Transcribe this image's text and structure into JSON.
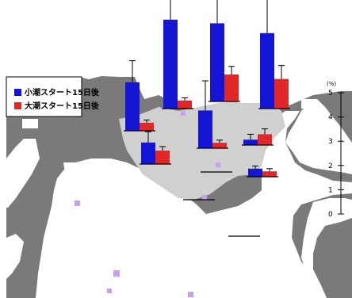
{
  "colors": {
    "land": "#7a7a7a",
    "sea": "#ffffff",
    "study_area": "#d0d0d0",
    "series_blue": "#1515d6",
    "series_red": "#e02828",
    "marker": "#c8a0f0"
  },
  "legend": {
    "items": [
      {
        "label": "小潮スタート15日後",
        "color": "#1515d6"
      },
      {
        "label": "大潮スタート15日後",
        "color": "#e02828"
      }
    ]
  },
  "axis": {
    "unit_label": "(%)",
    "ticks": [
      "5",
      "4",
      "3",
      "2",
      "1",
      "0"
    ]
  },
  "chart_data": {
    "type": "bar",
    "title": "",
    "ylabel": "(%)",
    "ylim": [
      0,
      5
    ],
    "series": [
      {
        "name": "小潮スタート15日後",
        "values": [
          1.8,
          3.3,
          2.9,
          1.4,
          0.2,
          0.3,
          0.8,
          0.0,
          0.0,
          0.0,
          2.8
        ]
      },
      {
        "name": "大潮スタート15日後",
        "values": [
          0.3,
          0.3,
          1.0,
          0.2,
          0.4,
          0.2,
          0.5,
          0.0,
          0.0,
          0.0,
          1.1
        ]
      }
    ],
    "error_bars": {
      "blue": [
        0.8,
        0.9,
        1.0,
        1.1,
        0.2,
        0.1,
        0.4,
        0.0,
        0.0,
        0.0,
        1.6
      ],
      "red": [
        0.1,
        0.1,
        0.3,
        0.1,
        0.2,
        0.1,
        0.15,
        0.0,
        0.0,
        0.0,
        0.5
      ]
    }
  }
}
